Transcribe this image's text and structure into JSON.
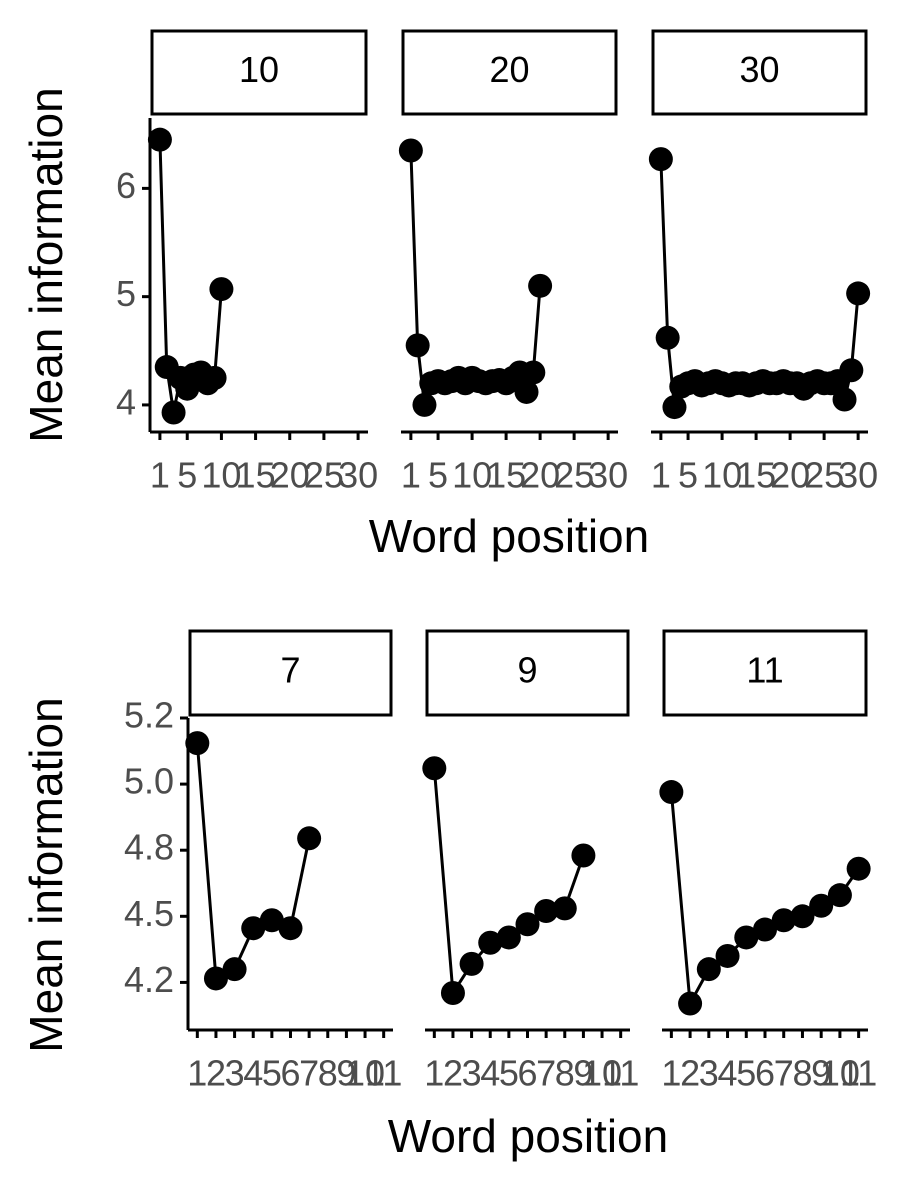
{
  "chart_data": [
    {
      "type": "line",
      "color": "#000000",
      "x_label": "Word position",
      "y_label": "Mean information",
      "ylim": [
        3.75,
        6.65
      ],
      "yticks": [
        4,
        5,
        6
      ],
      "xlim": [
        -0.45,
        31.45
      ],
      "xticks": [
        1,
        5,
        10,
        15,
        20,
        25,
        30
      ],
      "panels": [
        {
          "title": "10",
          "x": [
            1,
            2,
            3,
            4,
            5,
            6,
            7,
            8,
            9,
            10
          ],
          "values": [
            6.45,
            4.35,
            3.93,
            4.25,
            4.15,
            4.28,
            4.3,
            4.2,
            4.25,
            5.07
          ]
        },
        {
          "title": "20",
          "x": [
            1,
            2,
            3,
            4,
            5,
            6,
            7,
            8,
            9,
            10,
            11,
            12,
            13,
            14,
            15,
            16,
            17,
            18,
            19,
            20
          ],
          "values": [
            6.35,
            4.55,
            4.0,
            4.2,
            4.22,
            4.2,
            4.22,
            4.25,
            4.2,
            4.25,
            4.22,
            4.2,
            4.22,
            4.23,
            4.2,
            4.25,
            4.3,
            4.12,
            4.3,
            5.1
          ]
        },
        {
          "title": "30",
          "x": [
            1,
            2,
            3,
            4,
            5,
            6,
            7,
            8,
            9,
            10,
            11,
            12,
            13,
            14,
            15,
            16,
            17,
            18,
            19,
            20,
            21,
            22,
            23,
            24,
            25,
            26,
            27,
            28,
            29,
            30
          ],
          "values": [
            6.27,
            4.62,
            3.98,
            4.17,
            4.2,
            4.22,
            4.18,
            4.2,
            4.22,
            4.2,
            4.18,
            4.2,
            4.2,
            4.18,
            4.2,
            4.22,
            4.2,
            4.2,
            4.22,
            4.2,
            4.2,
            4.15,
            4.2,
            4.22,
            4.2,
            4.2,
            4.22,
            4.05,
            4.32,
            5.03
          ]
        }
      ]
    },
    {
      "type": "line",
      "color": "#000000",
      "x_label": "Word position",
      "y_label": "Mean information",
      "ylim": [
        4.07,
        5.25
      ],
      "yticks": [
        {
          "value": 4.25,
          "label": "4.2"
        },
        4.5,
        {
          "value": 4.75,
          "label": "4.8"
        },
        {
          "value": 5,
          "label": "5.0"
        },
        {
          "value": 5.25,
          "label": "5.2"
        }
      ],
      "xlim": [
        0.5,
        11.5
      ],
      "xticks": [
        1,
        2,
        3,
        4,
        5,
        6,
        7,
        8,
        9,
        10,
        11
      ],
      "panels": [
        {
          "title": "7",
          "x": [
            1,
            2,
            3,
            4,
            5,
            6,
            7
          ],
          "values": [
            5.155,
            4.265,
            4.3,
            4.455,
            4.485,
            4.455,
            4.795
          ]
        },
        {
          "title": "9",
          "x": [
            1,
            2,
            3,
            4,
            5,
            6,
            7,
            8,
            9
          ],
          "values": [
            5.06,
            4.21,
            4.32,
            4.4,
            4.42,
            4.47,
            4.52,
            4.53,
            4.73
          ]
        },
        {
          "title": "11",
          "x": [
            1,
            2,
            3,
            4,
            5,
            6,
            7,
            8,
            9,
            10,
            11
          ],
          "values": [
            4.97,
            4.17,
            4.3,
            4.35,
            4.42,
            4.45,
            4.485,
            4.5,
            4.54,
            4.58,
            4.68
          ]
        }
      ]
    }
  ]
}
